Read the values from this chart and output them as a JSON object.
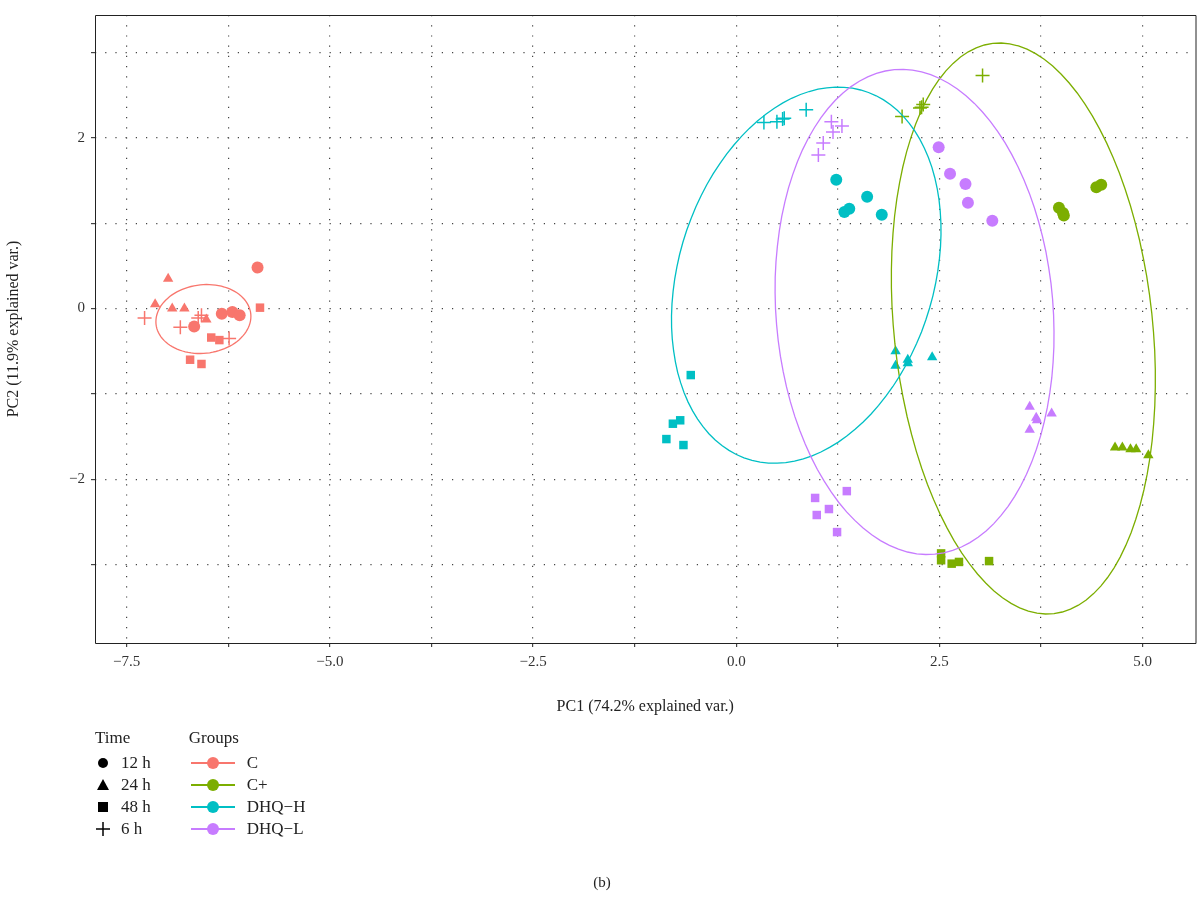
{
  "chart_data": {
    "type": "scatter",
    "xlabel": "PC1 (74.2% explained var.)",
    "ylabel": "PC2 (11.9% explained var.)",
    "legend_title": [
      "Time",
      "Groups"
    ],
    "legend": "bottom left",
    "grid": true,
    "xlim": [
      -7.89,
      5.65
    ],
    "xticks": [
      {
        "value": -7.5,
        "label": "−7.5"
      },
      {
        "value": -6.25,
        "label": null
      },
      {
        "value": -5,
        "label": "−5.0"
      },
      {
        "value": -3.75,
        "label": null
      },
      {
        "value": -2.5,
        "label": "−2.5"
      },
      {
        "value": -1.25,
        "label": null
      },
      {
        "value": 0,
        "label": "0.0"
      },
      {
        "value": 1.25,
        "label": null
      },
      {
        "value": 2.5,
        "label": "2.5"
      },
      {
        "value": 3.75,
        "label": null
      },
      {
        "value": 5,
        "label": "5.0"
      }
    ],
    "ylim": [
      -3.92,
      3.44
    ],
    "yticks": [
      {
        "value": -3,
        "label": null
      },
      {
        "value": -2,
        "label": "−2"
      },
      {
        "value": -1,
        "label": null
      },
      0,
      {
        "value": 1,
        "label": null
      },
      2,
      {
        "value": 3,
        "label": null
      }
    ],
    "annotations": [
      "(b)"
    ],
    "series": [
      {
        "name": "12 h",
        "marker": "circle",
        "color": "#000000"
      },
      {
        "name": "24 h",
        "marker": "triangle",
        "color": "#000000"
      },
      {
        "name": "48 h",
        "marker": "square",
        "color": "#000000"
      },
      {
        "name": "6 h",
        "marker": "cross",
        "color": "#000000"
      },
      {
        "name": "C",
        "marker": "circle",
        "color": "#f8766d",
        "x": [
          -5.89,
          -6.33,
          -6.2,
          -6.11,
          -6.67
        ],
        "values": [
          0.48,
          -0.06,
          -0.04,
          -0.08,
          -0.21
        ]
      },
      {
        "name": "C+",
        "marker": "circle",
        "color": "#7cae00",
        "x": [
          3.97,
          4.03,
          4.02,
          4.43,
          4.49
        ],
        "values": [
          1.18,
          1.09,
          1.12,
          1.42,
          1.45
        ]
      },
      {
        "name": "DHQ−H",
        "marker": "circle",
        "color": "#00bfc4",
        "x": [
          1.23,
          1.33,
          1.39,
          1.61,
          1.79
        ],
        "values": [
          1.51,
          1.13,
          1.17,
          1.31,
          1.1
        ]
      },
      {
        "name": "DHQ−L",
        "marker": "circle",
        "color": "#c77cff",
        "x": [
          2.49,
          2.63,
          2.82,
          2.85,
          3.15
        ],
        "values": [
          1.89,
          1.58,
          1.46,
          1.24,
          1.03
        ]
      },
      {
        "marker": "triangle",
        "color": "#f8766d",
        "x": [
          -6.99,
          -7.15,
          -6.94,
          -6.79,
          -6.52
        ],
        "values": [
          0.35,
          0.05,
          0.0,
          0.0,
          -0.13
        ]
      },
      {
        "marker": "triangle",
        "color": "#7cae00",
        "x": [
          4.66,
          4.75,
          4.85,
          4.92,
          5.07
        ],
        "values": [
          -1.63,
          -1.63,
          -1.65,
          -1.65,
          -1.72
        ]
      },
      {
        "marker": "triangle",
        "color": "#00bfc4",
        "x": [
          1.96,
          1.96,
          2.11,
          2.11,
          2.41
        ],
        "values": [
          -0.5,
          -0.67,
          -0.6,
          -0.64,
          -0.57
        ]
      },
      {
        "marker": "triangle",
        "color": "#c77cff",
        "x": [
          3.61,
          3.69,
          3.7,
          3.61,
          3.88
        ],
        "values": [
          -1.15,
          -1.28,
          -1.31,
          -1.42,
          -1.23
        ]
      },
      {
        "marker": "square",
        "color": "#f8766d",
        "x": [
          -5.86,
          -6.46,
          -6.36,
          -6.72,
          -6.58
        ],
        "values": [
          0.01,
          -0.34,
          -0.37,
          -0.6,
          -0.65
        ]
      },
      {
        "marker": "square",
        "color": "#7cae00",
        "x": [
          2.52,
          2.52,
          2.65,
          2.74,
          3.11
        ],
        "values": [
          -2.87,
          -2.95,
          -2.99,
          -2.97,
          -2.96
        ]
      },
      {
        "marker": "square",
        "color": "#00bfc4",
        "x": [
          -0.56,
          -0.69,
          -0.78,
          -0.86,
          -0.65
        ],
        "values": [
          -0.78,
          -1.31,
          -1.35,
          -1.53,
          -1.6
        ]
      },
      {
        "marker": "square",
        "color": "#c77cff",
        "x": [
          1.36,
          0.97,
          1.14,
          0.99,
          1.24
        ],
        "values": [
          -2.14,
          -2.22,
          -2.35,
          -2.42,
          -2.62
        ]
      },
      {
        "marker": "cross",
        "color": "#f8766d",
        "x": [
          -7.28,
          -6.84,
          -6.62,
          -6.58,
          -6.24
        ],
        "values": [
          -0.11,
          -0.22,
          -0.11,
          -0.08,
          -0.35
        ]
      },
      {
        "marker": "cross",
        "color": "#7cae00",
        "x": [
          3.03,
          2.04,
          2.28,
          2.3,
          2.26
        ],
        "values": [
          2.73,
          2.25,
          2.36,
          2.39,
          2.35
        ]
      },
      {
        "marker": "cross",
        "color": "#00bfc4",
        "x": [
          0.34,
          0.5,
          0.57,
          0.59,
          0.86
        ],
        "values": [
          2.18,
          2.19,
          2.22,
          2.23,
          2.33
        ]
      },
      {
        "marker": "cross",
        "color": "#c77cff",
        "x": [
          1.17,
          1.3,
          1.19,
          1.07,
          1.01
        ],
        "values": [
          2.19,
          2.14,
          2.07,
          1.94,
          1.8
        ]
      }
    ]
  }
}
